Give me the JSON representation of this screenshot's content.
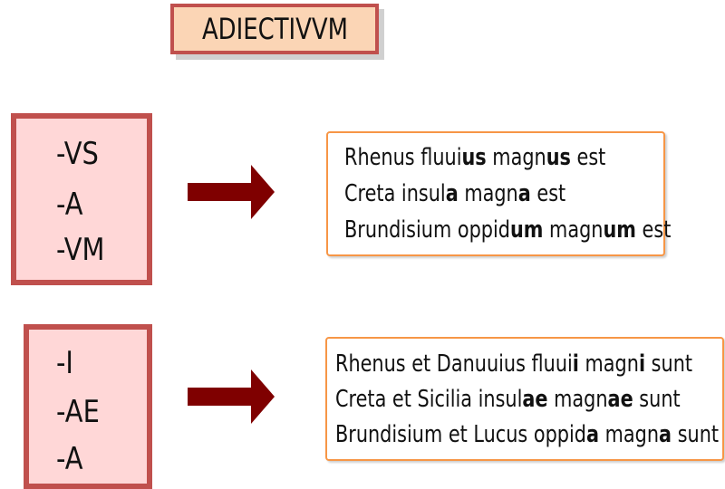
{
  "title": "ADIECTIVVM",
  "colors": {
    "box_border": "#c0504d",
    "title_fill": "#fbd5b5",
    "suffix_fill": "#ffd7d7",
    "arrow": "#7f0000",
    "example_border": "#f79646"
  },
  "groups": [
    {
      "suffixes": [
        "-VS",
        "-A",
        "-VM"
      ],
      "examples": [
        [
          {
            "t": "Rhenus fluui",
            "b": false
          },
          {
            "t": "us",
            "b": true
          },
          {
            "t": " magn",
            "b": false
          },
          {
            "t": "us",
            "b": true
          },
          {
            "t": " est",
            "b": false
          }
        ],
        [
          {
            "t": "Creta insul",
            "b": false
          },
          {
            "t": "a",
            "b": true
          },
          {
            "t": " magn",
            "b": false
          },
          {
            "t": "a",
            "b": true
          },
          {
            "t": " est",
            "b": false
          }
        ],
        [
          {
            "t": "Brundisium oppid",
            "b": false
          },
          {
            "t": "um",
            "b": true
          },
          {
            "t": " magn",
            "b": false
          },
          {
            "t": "um",
            "b": true
          },
          {
            "t": " est",
            "b": false
          }
        ]
      ]
    },
    {
      "suffixes": [
        "-I",
        "-AE",
        "-A"
      ],
      "examples": [
        [
          {
            "t": "Rhenus et Danuuius fluui",
            "b": false
          },
          {
            "t": "i",
            "b": true
          },
          {
            "t": " magn",
            "b": false
          },
          {
            "t": "i",
            "b": true
          },
          {
            "t": " sunt",
            "b": false
          }
        ],
        [
          {
            "t": "Creta et Sicilia insul",
            "b": false
          },
          {
            "t": "ae",
            "b": true
          },
          {
            "t": " magn",
            "b": false
          },
          {
            "t": "ae",
            "b": true
          },
          {
            "t": " sunt",
            "b": false
          }
        ],
        [
          {
            "t": "Brundisium et Lucus oppid",
            "b": false
          },
          {
            "t": "a",
            "b": true
          },
          {
            "t": " magn",
            "b": false
          },
          {
            "t": "a",
            "b": true
          },
          {
            "t": " sunt",
            "b": false
          }
        ]
      ]
    }
  ]
}
